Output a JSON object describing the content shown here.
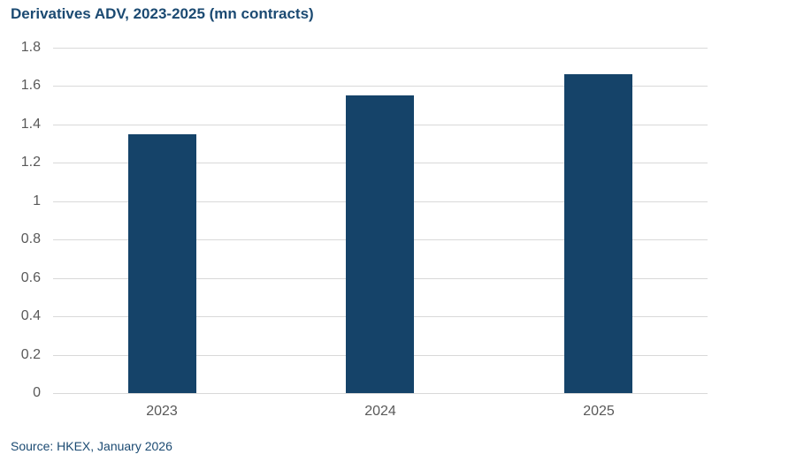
{
  "chart": {
    "title": "Derivatives ADV, 2023-2025 (mn contracts)",
    "source": "Source: HKEX, January 2026",
    "bar_color": "#154369",
    "title_color": "#1b4a72"
  },
  "chart_data": {
    "type": "bar",
    "title": "Derivatives ADV, 2023-2025 (mn contracts)",
    "xlabel": "",
    "ylabel": "",
    "categories": [
      "2023",
      "2024",
      "2025"
    ],
    "values": [
      1.35,
      1.55,
      1.66
    ],
    "ylim": [
      0,
      1.8
    ],
    "yticks": [
      "0",
      "0.2",
      "0.4",
      "0.6",
      "0.8",
      "1",
      "1.2",
      "1.4",
      "1.6",
      "1.8"
    ],
    "grid": true,
    "legend": null,
    "annotations": [
      "Source: HKEX, January 2026"
    ]
  }
}
